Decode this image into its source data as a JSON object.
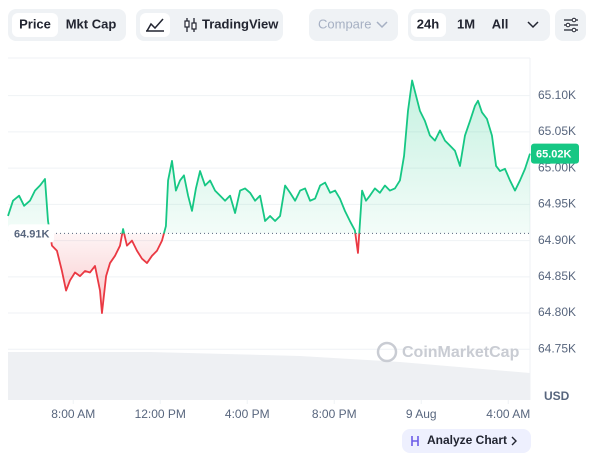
{
  "toolbar": {
    "price": "Price",
    "mkt_cap": "Mkt Cap",
    "tradingview": "TradingView",
    "compare": "Compare",
    "range_24h": "24h",
    "range_1m": "1M",
    "range_all": "All"
  },
  "chart_data": {
    "type": "line",
    "x": [
      5.0,
      5.23,
      5.51,
      5.74,
      6.01,
      6.24,
      6.47,
      6.7,
      6.84,
      7.02,
      7.25,
      7.48,
      7.67,
      7.85,
      8.08,
      8.31,
      8.54,
      8.77,
      9.0,
      9.23,
      9.32,
      9.51,
      9.69,
      9.92,
      10.15,
      10.29,
      10.47,
      10.7,
      10.93,
      11.16,
      11.39,
      11.62,
      11.85,
      12.08,
      12.26,
      12.36,
      12.54,
      12.72,
      12.91,
      13.09,
      13.28,
      13.46,
      13.64,
      13.83,
      14.06,
      14.29,
      14.52,
      14.75,
      14.98,
      15.21,
      15.44,
      15.67,
      15.9,
      16.13,
      16.36,
      16.59,
      16.82,
      17.05,
      17.28,
      17.51,
      17.74,
      17.97,
      18.2,
      18.43,
      18.66,
      18.89,
      19.12,
      19.35,
      19.58,
      19.81,
      20.04,
      20.26,
      20.49,
      20.72,
      20.95,
      21.09,
      21.28,
      21.46,
      21.64,
      21.87,
      22.1,
      22.33,
      22.56,
      22.79,
      23.02,
      23.21,
      23.39,
      23.58,
      23.76,
      23.94,
      24.17,
      24.4,
      24.63,
      24.86,
      25.09,
      25.32,
      25.55,
      25.78,
      26.01,
      26.24,
      26.47,
      26.61,
      26.79,
      27.02,
      27.25,
      27.44,
      27.62,
      27.85,
      28.08,
      28.31,
      28.54,
      28.77,
      29.0
    ],
    "values": [
      64.934,
      64.955,
      64.962,
      64.948,
      64.955,
      64.969,
      64.976,
      64.985,
      64.927,
      64.893,
      64.886,
      64.858,
      64.831,
      64.845,
      64.856,
      64.851,
      64.858,
      64.856,
      64.865,
      64.831,
      64.8,
      64.851,
      64.869,
      64.879,
      64.893,
      64.916,
      64.893,
      64.9,
      64.886,
      64.875,
      64.869,
      64.879,
      64.886,
      64.9,
      64.92,
      64.983,
      65.01,
      64.969,
      64.983,
      64.99,
      64.962,
      64.941,
      64.972,
      64.996,
      64.976,
      64.983,
      64.969,
      64.962,
      64.955,
      64.962,
      64.938,
      64.969,
      64.972,
      64.966,
      64.955,
      64.962,
      64.927,
      64.934,
      64.927,
      64.934,
      64.976,
      64.966,
      64.955,
      64.969,
      64.972,
      64.955,
      64.958,
      64.976,
      64.98,
      64.966,
      64.969,
      64.958,
      64.941,
      64.927,
      64.914,
      64.883,
      64.969,
      64.955,
      64.962,
      64.972,
      64.966,
      64.976,
      64.969,
      64.972,
      64.983,
      65.017,
      65.079,
      65.121,
      65.1,
      65.079,
      65.065,
      65.045,
      65.038,
      65.052,
      65.038,
      65.031,
      65.024,
      65.003,
      65.045,
      65.065,
      65.086,
      65.093,
      65.077,
      65.068,
      65.045,
      65.003,
      64.996,
      64.999,
      64.983,
      64.969,
      64.983,
      64.999,
      65.02
    ],
    "up_color": "#16c784",
    "down_color": "#ea3943",
    "baseline": {
      "value": 64.91,
      "label": "64.91K"
    },
    "last_price": {
      "value": 65.02,
      "label": "65.02K"
    },
    "xlim": [
      5,
      29
    ],
    "xticks": [
      {
        "value": 8,
        "label": "8:00 AM"
      },
      {
        "value": 12,
        "label": "12:00 PM"
      },
      {
        "value": 16,
        "label": "4:00 PM"
      },
      {
        "value": 20,
        "label": "8:00 PM"
      },
      {
        "value": 24,
        "label": "9 Aug"
      },
      {
        "value": 28,
        "label": "4:00 AM"
      }
    ],
    "ylim": [
      64.68,
      65.152
    ],
    "yticks": [
      {
        "value": 64.75,
        "label": "64.75K"
      },
      {
        "value": 64.8,
        "label": "64.80K"
      },
      {
        "value": 64.85,
        "label": "64.85K"
      },
      {
        "value": 64.9,
        "label": "64.90K"
      },
      {
        "value": 64.95,
        "label": "64.95K"
      },
      {
        "value": 65.0,
        "label": "65.00K"
      },
      {
        "value": 65.05,
        "label": "65.05K"
      },
      {
        "value": 65.1,
        "label": "65.10K"
      }
    ],
    "grid": true,
    "currency": "USD",
    "watermark": "CoinMarketCap",
    "analyze_button": "Analyze Chart"
  }
}
